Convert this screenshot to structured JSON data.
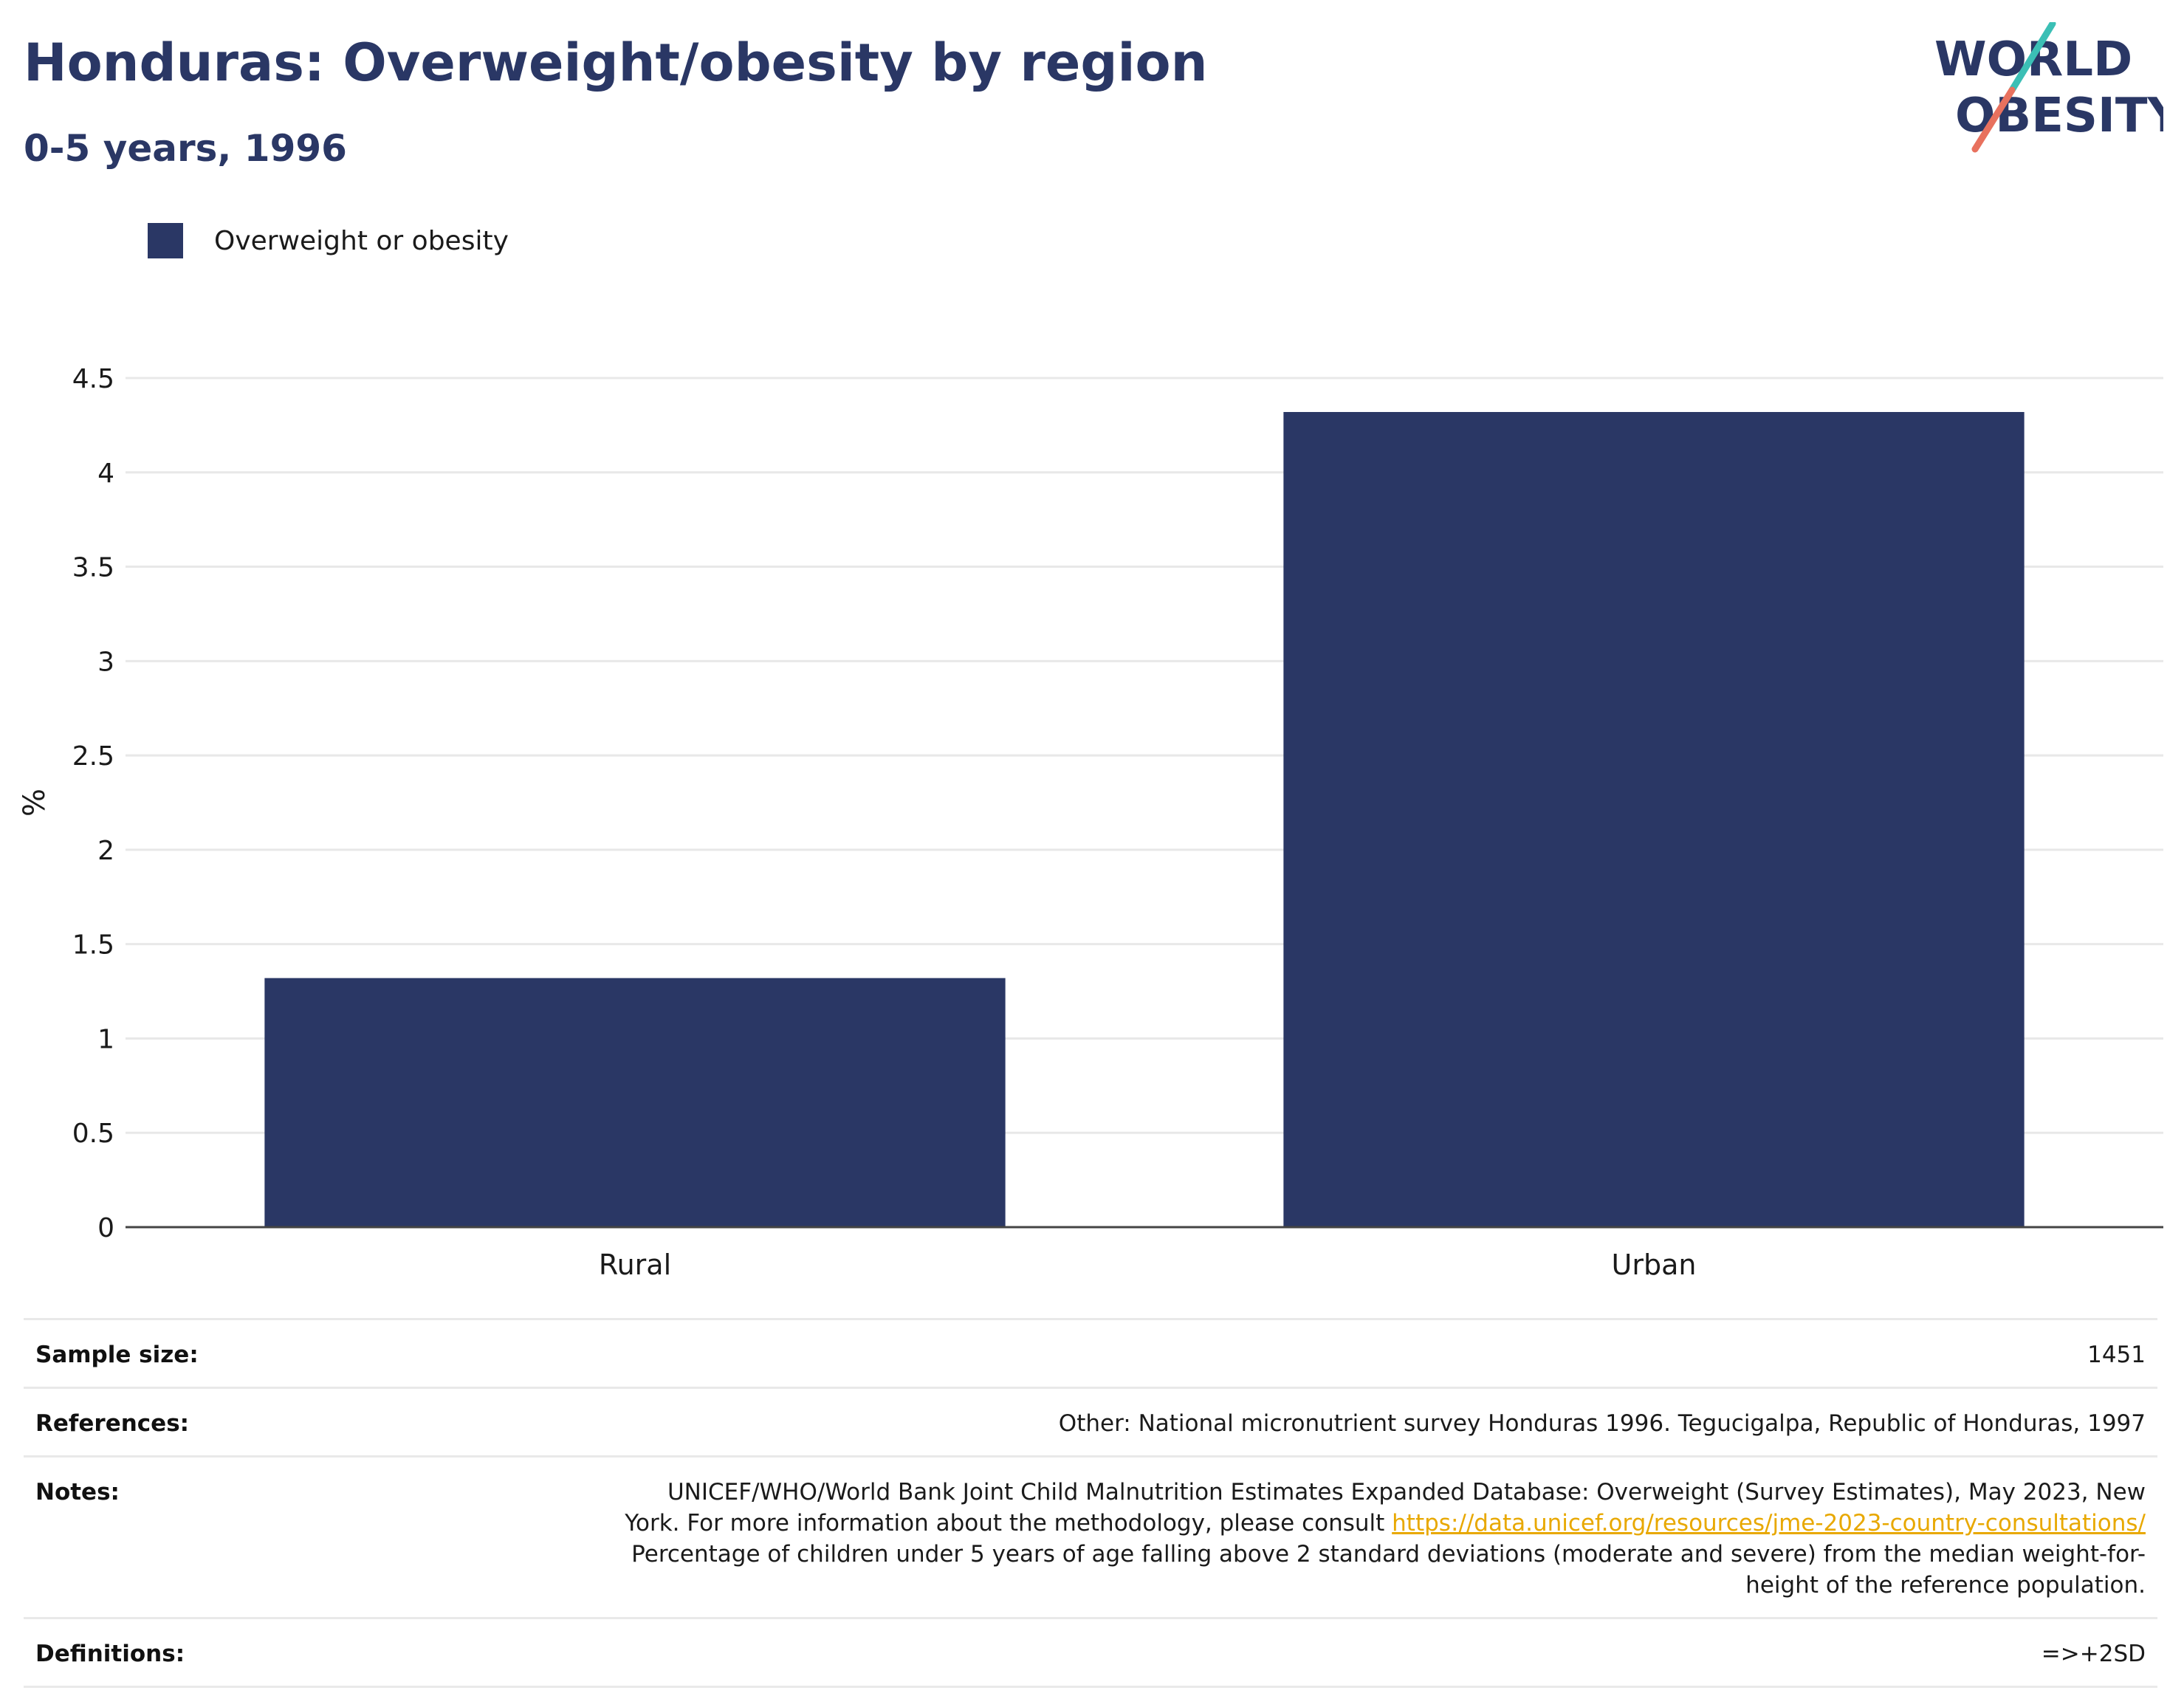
{
  "header": {
    "title": "Honduras: Overweight/obesity by region",
    "subtitle": "0-5 years, 1996"
  },
  "logo": {
    "line1": "WORLD",
    "line2": "OBESITY",
    "colors": {
      "text": "#2a3765",
      "slash_top": "#3bbfb5",
      "slash_bottom": "#e8715e"
    }
  },
  "legend": {
    "label": "Overweight or obesity",
    "color": "#2a3765"
  },
  "chart_data": {
    "type": "bar",
    "categories": [
      "Rural",
      "Urban"
    ],
    "series": [
      {
        "name": "Overweight or obesity",
        "values": [
          1.32,
          4.32
        ],
        "color": "#2a3765"
      }
    ],
    "xlabel": "",
    "ylabel": "%",
    "ylim": [
      0,
      4.5
    ],
    "yticks": [
      0,
      0.5,
      1,
      1.5,
      2,
      2.5,
      3,
      3.5,
      4,
      4.5
    ],
    "ytick_labels": [
      "0",
      "0.5",
      "1",
      "1.5",
      "2",
      "2.5",
      "3",
      "3.5",
      "4",
      "4.5"
    ],
    "grid": true,
    "legend_position": "top-left"
  },
  "info": {
    "sample_size": {
      "label": "Sample size:",
      "value": "1451"
    },
    "references": {
      "label": "References:",
      "value": "Other: National micronutrient survey Honduras 1996. Tegucigalpa, Republic of Honduras, 1997"
    },
    "notes": {
      "label": "Notes:",
      "text_before": "UNICEF/WHO/World Bank Joint Child Malnutrition Estimates Expanded Database: Overweight (Survey Estimates), May 2023, New York. For more information about the methodology, please consult ",
      "link": "https://data.unicef.org/resources/jme-2023-country-consultations/",
      "text_after": " Percentage of children under 5 years of age falling above 2 standard deviations (moderate and severe) from the median weight-for-height of the reference population."
    },
    "definitions": {
      "label": "Definitions:",
      "value": "=>+2SD"
    }
  }
}
